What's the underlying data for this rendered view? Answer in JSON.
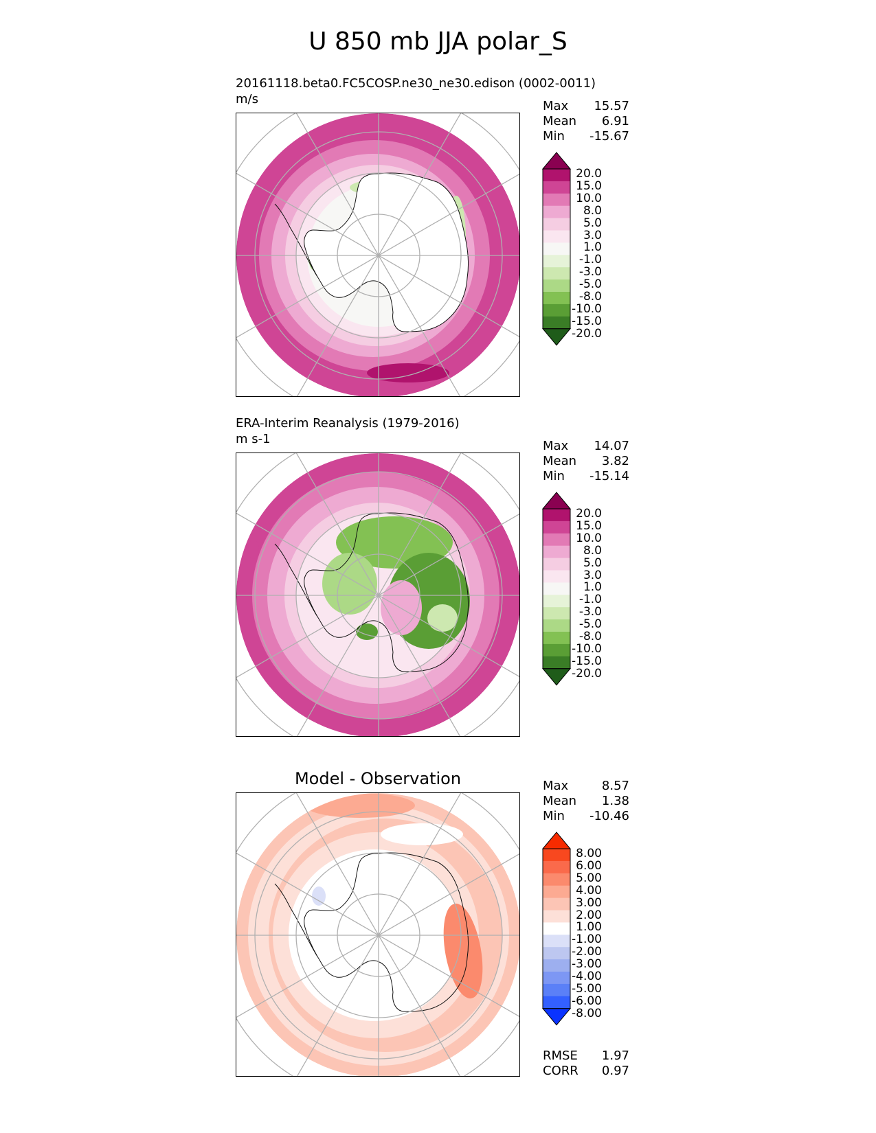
{
  "title": "U 850 mb JJA polar_S",
  "panels": [
    {
      "id": "model",
      "title": "20161118.beta0.FC5COSP.ne30_ne30.edison (0002-0011)",
      "units": "m/s",
      "center_title": "",
      "stats": [
        {
          "label": "Max",
          "value": "15.57"
        },
        {
          "label": "Mean",
          "value": "6.91"
        },
        {
          "label": "Min",
          "value": "-15.67"
        }
      ],
      "colorbar": {
        "colors": [
          "#1f5c1a",
          "#3a7d26",
          "#5a9e35",
          "#83c153",
          "#acd986",
          "#cde8b0",
          "#e6f3d8",
          "#f7f7f5",
          "#fae6f0",
          "#f5cde2",
          "#eeaad2",
          "#e27ab5",
          "#cf4595",
          "#b0136d",
          "#8a0151"
        ],
        "labels": [
          "20.0",
          "15.0",
          "10.0",
          "8.0",
          "5.0",
          "3.0",
          "1.0",
          "-1.0",
          "-3.0",
          "-5.0",
          "-8.0",
          "-10.0",
          "-15.0",
          "-20.0"
        ]
      },
      "extra_stats": []
    },
    {
      "id": "obs",
      "title": "ERA-Interim Reanalysis (1979-2016)",
      "units": "m s-1",
      "center_title": "",
      "stats": [
        {
          "label": "Max",
          "value": "14.07"
        },
        {
          "label": "Mean",
          "value": "3.82"
        },
        {
          "label": "Min",
          "value": "-15.14"
        }
      ],
      "colorbar": {
        "colors": [
          "#1f5c1a",
          "#3a7d26",
          "#5a9e35",
          "#83c153",
          "#acd986",
          "#cde8b0",
          "#e6f3d8",
          "#f7f7f5",
          "#fae6f0",
          "#f5cde2",
          "#eeaad2",
          "#e27ab5",
          "#cf4595",
          "#b0136d",
          "#8a0151"
        ],
        "labels": [
          "20.0",
          "15.0",
          "10.0",
          "8.0",
          "5.0",
          "3.0",
          "1.0",
          "-1.0",
          "-3.0",
          "-5.0",
          "-8.0",
          "-10.0",
          "-15.0",
          "-20.0"
        ]
      },
      "extra_stats": []
    },
    {
      "id": "diff",
      "title": "",
      "units": "",
      "center_title": "Model - Observation",
      "stats": [
        {
          "label": "Max",
          "value": "8.57"
        },
        {
          "label": "Mean",
          "value": "1.38"
        },
        {
          "label": "Min",
          "value": "-10.46"
        }
      ],
      "colorbar": {
        "colors": [
          "#0a33ff",
          "#3360ff",
          "#5b80f7",
          "#7d97f4",
          "#9dafef",
          "#bdc7f0",
          "#dbe0f8",
          "#ffffff",
          "#fde0d8",
          "#fcc5b5",
          "#fcaa92",
          "#fb8a6d",
          "#fa6a4b",
          "#f8481f",
          "#f72b00"
        ],
        "labels": [
          "8.00",
          "6.00",
          "5.00",
          "4.00",
          "3.00",
          "2.00",
          "1.00",
          "-1.00",
          "-2.00",
          "-3.00",
          "-4.00",
          "-5.00",
          "-6.00",
          "-8.00"
        ]
      },
      "extra_stats": [
        {
          "label": "RMSE",
          "value": "1.97"
        },
        {
          "label": "CORR",
          "value": "0.97"
        }
      ]
    }
  ]
}
